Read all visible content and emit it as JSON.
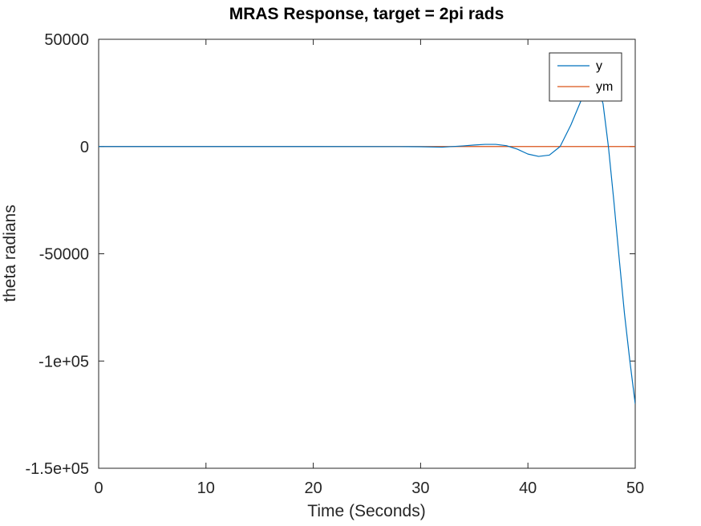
{
  "chart_data": {
    "type": "line",
    "title": "MRAS Response, target = 2pi rads",
    "xlabel": "Time (Seconds)",
    "ylabel": "theta radians",
    "xlim": [
      0,
      50
    ],
    "ylim": [
      -150000,
      50000
    ],
    "x_ticks": [
      0,
      10,
      20,
      30,
      40,
      50
    ],
    "x_tick_labels": [
      "0",
      "10",
      "20",
      "30",
      "40",
      "50"
    ],
    "y_ticks": [
      -150000,
      -100000,
      -50000,
      0,
      50000
    ],
    "y_tick_labels": [
      "-1.5e+05",
      "-1e+05",
      "-50000",
      "0",
      "50000"
    ],
    "grid": false,
    "legend_position": "top-right",
    "series": [
      {
        "name": "y",
        "color": "#0072BD",
        "x": [
          0,
          10,
          20,
          28,
          30,
          32,
          34,
          35,
          36,
          37,
          38,
          39,
          40,
          41,
          42,
          43,
          44,
          45,
          46,
          46.5,
          47,
          47.5,
          48,
          48.5,
          49,
          49.5,
          50
        ],
        "y": [
          0,
          0,
          0,
          -20,
          -100,
          -300,
          300,
          700,
          1000,
          1000,
          400,
          -1200,
          -3500,
          -4600,
          -4000,
          0,
          10000,
          22000,
          29000,
          28000,
          20000,
          0,
          -25000,
          -52000,
          -78000,
          -100000,
          -120000
        ]
      },
      {
        "name": "ym",
        "color": "#D95319",
        "x": [
          0,
          1,
          2,
          3,
          5,
          10,
          20,
          30,
          40,
          50
        ],
        "y": [
          0,
          4,
          5.5,
          6,
          6.28,
          6.28,
          6.28,
          6.28,
          6.28,
          6.28
        ]
      }
    ]
  }
}
